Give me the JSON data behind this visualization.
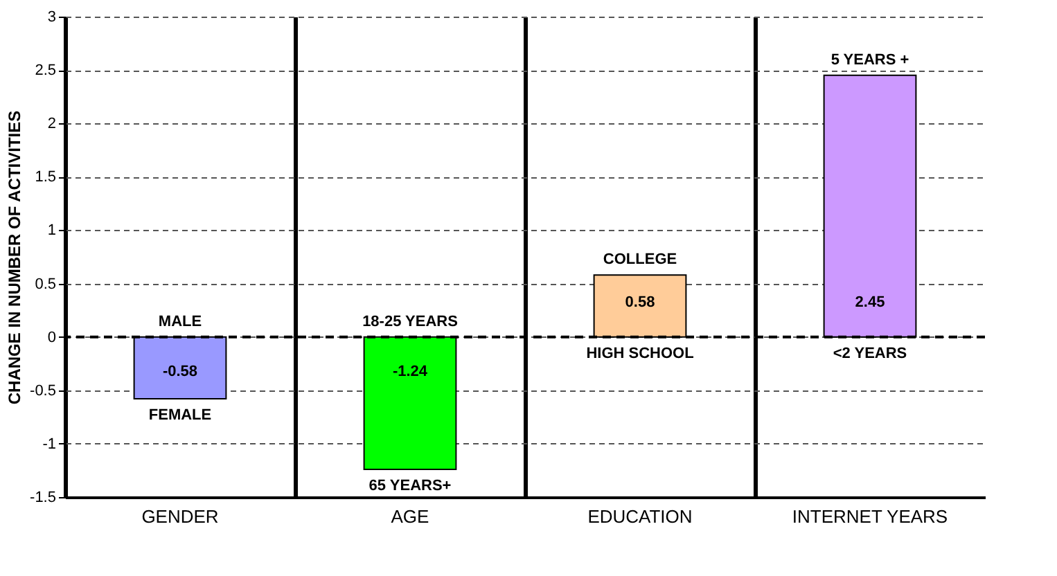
{
  "chart_data": {
    "type": "bar",
    "ylabel": "CHANGE IN NUMBER OF ACTIVITIES",
    "categories": [
      "GENDER",
      "AGE",
      "EDUCATION",
      "INTERNET YEARS"
    ],
    "values": [
      -0.58,
      -1.24,
      0.58,
      2.45
    ],
    "colors": [
      "#9999ff",
      "#00ff00",
      "#ffcc99",
      "#cc99ff"
    ],
    "data_labels": true,
    "ylim": [
      -1.5,
      3
    ],
    "yticks": [
      -1.5,
      -1,
      -0.5,
      0,
      0.5,
      1,
      1.5,
      2,
      2.5,
      3
    ],
    "grid": "y",
    "ref_lines": [
      {
        "axis": "y",
        "value": 0,
        "color": "#000000",
        "line_style": "dashed"
      }
    ],
    "annotations": [
      {
        "text": "MALE",
        "x": "GENDER",
        "y": 0
      },
      {
        "text": "FEMALE",
        "x": "GENDER",
        "y": -0.58
      },
      {
        "text": "18-25 YEARS",
        "x": "AGE",
        "y": 0
      },
      {
        "text": "65 YEARS+",
        "x": "AGE",
        "y": -1.24
      },
      {
        "text": "COLLEGE",
        "x": "EDUCATION",
        "y": 0.58
      },
      {
        "text": "HIGH SCHOOL",
        "x": "EDUCATION",
        "y": 0
      },
      {
        "text": "5 YEARS +",
        "x": "INTERNET YEARS",
        "y": 2.45
      },
      {
        "text": "<2 YEARS",
        "x": "INTERNET YEARS",
        "y": 0
      }
    ]
  }
}
